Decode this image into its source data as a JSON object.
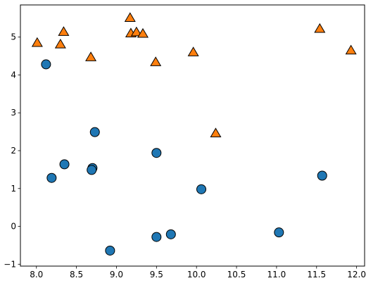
{
  "chart_data": {
    "type": "scatter",
    "title": "",
    "xlabel": "",
    "ylabel": "",
    "xlim": [
      7.8,
      12.1
    ],
    "ylim": [
      -1.05,
      5.85
    ],
    "grid": false,
    "x_ticks": [
      {
        "value": 8.0,
        "label": "8.0"
      },
      {
        "value": 8.5,
        "label": "8.5"
      },
      {
        "value": 9.0,
        "label": "9.0"
      },
      {
        "value": 9.5,
        "label": "9.5"
      },
      {
        "value": 10.0,
        "label": "10.0"
      },
      {
        "value": 10.5,
        "label": "10.5"
      },
      {
        "value": 11.0,
        "label": "11.0"
      },
      {
        "value": 11.5,
        "label": "11.5"
      },
      {
        "value": 12.0,
        "label": "12.0"
      }
    ],
    "y_ticks": [
      {
        "value": -1,
        "label": "−1"
      },
      {
        "value": 0,
        "label": "0"
      },
      {
        "value": 1,
        "label": "1"
      },
      {
        "value": 2,
        "label": "2"
      },
      {
        "value": 3,
        "label": "3"
      },
      {
        "value": 4,
        "label": "4"
      },
      {
        "value": 5,
        "label": "5"
      }
    ],
    "series": [
      {
        "marker": "circle",
        "color": "#1f77b4",
        "points": [
          {
            "x": 8.12,
            "y": 4.28
          },
          {
            "x": 8.73,
            "y": 2.49
          },
          {
            "x": 9.5,
            "y": 1.94
          },
          {
            "x": 8.35,
            "y": 1.64
          },
          {
            "x": 8.7,
            "y": 1.54
          },
          {
            "x": 8.69,
            "y": 1.49
          },
          {
            "x": 8.19,
            "y": 1.28
          },
          {
            "x": 10.06,
            "y": 0.98
          },
          {
            "x": 11.57,
            "y": 1.34
          },
          {
            "x": 9.68,
            "y": -0.21
          },
          {
            "x": 9.5,
            "y": -0.28
          },
          {
            "x": 11.03,
            "y": -0.16
          },
          {
            "x": 8.92,
            "y": -0.64
          }
        ]
      },
      {
        "marker": "triangle",
        "color": "#ff7f0e",
        "points": [
          {
            "x": 8.01,
            "y": 4.84
          },
          {
            "x": 8.34,
            "y": 5.13
          },
          {
            "x": 8.3,
            "y": 4.8
          },
          {
            "x": 8.68,
            "y": 4.46
          },
          {
            "x": 9.17,
            "y": 5.5
          },
          {
            "x": 9.18,
            "y": 5.09
          },
          {
            "x": 9.25,
            "y": 5.12
          },
          {
            "x": 9.33,
            "y": 5.08
          },
          {
            "x": 9.49,
            "y": 4.33
          },
          {
            "x": 9.96,
            "y": 4.59
          },
          {
            "x": 10.24,
            "y": 2.45
          },
          {
            "x": 11.54,
            "y": 5.21
          },
          {
            "x": 11.93,
            "y": 4.64
          }
        ]
      }
    ]
  }
}
